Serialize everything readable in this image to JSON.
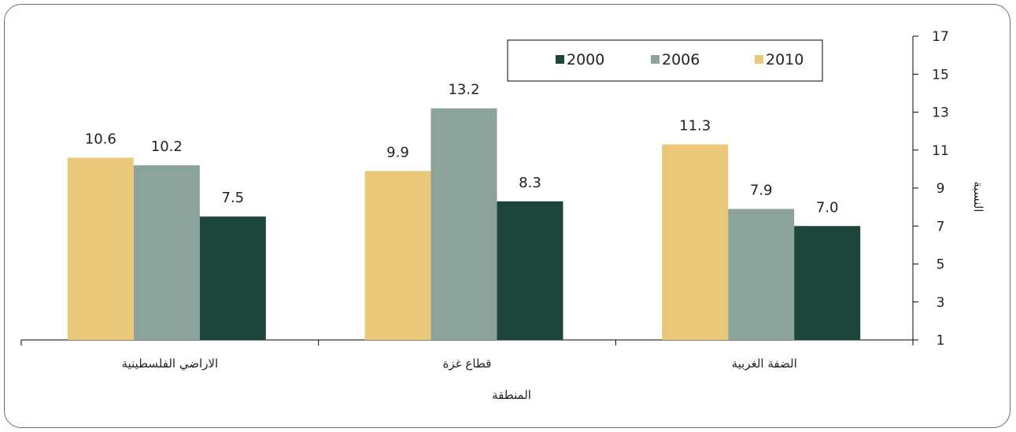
{
  "chart_data": {
    "type": "bar",
    "title": "",
    "xlabel": "المنطقة",
    "ylabel": "النسبة",
    "ylim": [
      1,
      17
    ],
    "yticks": [
      1,
      3,
      5,
      7,
      9,
      11,
      13,
      15,
      17
    ],
    "y_axis_side": "right",
    "categories": [
      "الاراضي الفلسطينية",
      "قطاع غزة",
      "الضفة الغربية"
    ],
    "series": [
      {
        "name": "2010",
        "color": "#e9c87a",
        "values": [
          10.6,
          9.9,
          11.3
        ]
      },
      {
        "name": "2006",
        "color": "#8ba29d",
        "values": [
          10.2,
          13.2,
          7.9
        ]
      },
      {
        "name": "2000",
        "color": "#1c453c",
        "values": [
          7.5,
          8.3,
          7.0
        ]
      }
    ],
    "data_labels": [
      [
        "10.6",
        "9.9",
        "11.3"
      ],
      [
        "10.2",
        "13.2",
        "7.9"
      ],
      [
        "7.5",
        "8.3",
        "7.0"
      ]
    ],
    "legend": {
      "position": "top-right",
      "order": [
        "2000",
        "2006",
        "2010"
      ]
    },
    "grid": false
  }
}
